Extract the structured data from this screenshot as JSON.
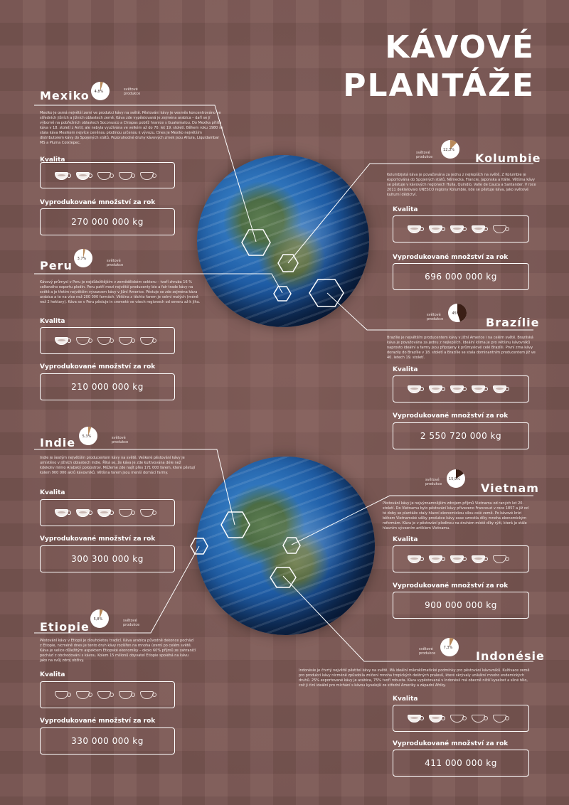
{
  "title_lines": [
    "KÁVOVÉ",
    "PLANTÁŽE"
  ],
  "labels": {
    "quality": "Kvalita",
    "production": "Vyprodukované množství za rok",
    "share": "světové produkce"
  },
  "colors": {
    "background": "#7a5652",
    "text": "#ffffff",
    "pie_fill": "#ffffff",
    "pie_share_light": "#b8895a",
    "pie_share_dark": "#3b1f16"
  },
  "countries": [
    {
      "name": "Mexiko",
      "share_percent": 4.8,
      "share_label": "4,8%",
      "pie_color": "#b8895a",
      "description": "Mexiko je osmá největší zemí ve produkci kávy na světě. Pěstování kávy je vesměs koncentrováno ve středních jižních a jižních oblastech země. Káva zde vypěstovaná je zejména arabica – daří se jí výborně na pobřežních oblastech Soconusco a Chiapas poblíž hranice s Guatemalou. Do Mexika přišla káva v 18. století z Antil, ale nebyla využívána ve velkém až do 70. let 19. století. Během roku 1980 se stala káva Mexikem nejvíce ceněnou plodinou určenou k vývozu. Dnes je Mexiko největším distributorem kávy do Spojených států. Pozoruhodné druhy kávových zrnek jsou Altura, Liquidambar MS a Pluma Coixtepec.",
      "quality": 2,
      "production": "270 000 000 kg"
    },
    {
      "name": "Kolumbie",
      "share_percent": 12.3,
      "share_label": "12,3%",
      "pie_color": "#b8895a",
      "description": "Kolumbijská káva je považována za jednu z nejlepších na světě. Z Kolumbie je exportována do Spojených států, Německa, Francie, Japonska a Itálie. Většina kávy se pěstuje v kávových regionech Huila, Quindío, Valle de Cauca a Santander. V roce 2011 deklarovalo UNESCO regiony Kolumbie, kde se pěstuje káva, jako světové kulturní dědictví.",
      "quality": 4,
      "production": "696 000 000 kg"
    },
    {
      "name": "Peru",
      "share_percent": 3.7,
      "share_label": "3,7%",
      "pie_color": "#b8895a",
      "description": "Kávový průmysl v Peru je nejdůležitějším v zemědělském sektoru – tvoří zhruba 16 % celkového exportu plodin. Peru patří mezi největší producenty bio a fair trade kávy na světě a je třetím největším vývozcem kávy v Jižní Americe. Pěstuje se zde zejména káva arabica a to na více než 200 000 farmách. Většina z těchto farem je velmi malých (méně než 2 hektary). Káva se v Peru pěstuje in cremeté ve všech regionech od severu až k jihu.",
      "quality": 1,
      "production": "210 000 000 kg"
    },
    {
      "name": "Brazílie",
      "share_percent": 45,
      "share_label": "45%",
      "pie_color": "#3b1f16",
      "description": "Brazílie je největším producentem kávy v Jižní Americe i na celém světě. Brazilská káva je považována za jednu z nejlepších. Ideální klima je pro většinu kávovníků naprosto ideální a farmy jsou připojeny k průmyslové celé Brazílii. První zrna kávy dorazily do Brazílie v 18. století a Brazílie se stala dominantním producentem již ve 40. letech 19. století.",
      "quality": 5,
      "production": "2 550 720 000 kg"
    },
    {
      "name": "Indie",
      "share_percent": 5.3,
      "share_label": "5,3%",
      "pie_color": "#b8895a",
      "description": "Indie je šestým největším producentem kávy na světě. Veškeré pěstování kávy je umístěno v jižních oblastech Indie. Říká se, že káva je zde kultivována déle než kdekoliv mimo Arabský poloostrov. Můžeme zde najít přes 171 000 farem, které pěstují kolem 900 000 akrů kávovníků. Většina farem jsou menší domácí farmy.",
      "quality": 3,
      "production": "300 300 000 kg"
    },
    {
      "name": "Vietnam",
      "share_percent": 15.9,
      "share_label": "15,9%",
      "pie_color": "#3b1f16",
      "description": "Pěstování kávy je nejvýznamnějším zdrojem příjmů Vietnamu od raných let 20. století. Do Vietnamu bylo pěstování kávy přivezeno Francouzi v roce 1857 a již od té doby se plantáže staly hlavní ekonomickou silou celé země. Po kávové krizi během Vietnamské války produkce kávy zase vzrostla díky mnoha ekonomickým reformám. Káva je v pěstování plodinou na druhém místě díky rýži, která je stále hlavním vývozním artiklem Vietnamu.",
      "quality": 4,
      "production": "900 000 000 kg"
    },
    {
      "name": "Etiopie",
      "share_percent": 5.8,
      "share_label": "5,8%",
      "pie_color": "#b8895a",
      "description": "Pěstování kávy v Etiopii je dlouholetou tradicí. Káva arabica původně dekonce pochází z Etiopie, nicméně dnes je tento druh kávy rozšířen na mnoha území po celém světě. Káva je velice důležitým aspektem Etiopské ekonomiky – okolo 60% příjmů ze zahraničí pochází z obchodování s kávou. Kolem 15 milionů obyvatel Etiopie spoléhá na kávu jako na svůj zdroj obživy.",
      "quality": 0,
      "production": "330 000 000 kg"
    },
    {
      "name": "Indonésie",
      "share_percent": 7.3,
      "share_label": "7,3%",
      "pie_color": "#b8895a",
      "description": "Indonésie je čtvrtý největší pěstitel kávy na světě. Má ideální mikroklimatické podmínky pro pěstování kávovníků. Kultivace země pro produkci kávy nicméně způsobila zničení mnoha tropických deštných pralesů, které skrývaly unikátní mnoho endemických druhů. 25% exportované kávy je arabica, 75% tvoří robusta. Káva vypěstovaná v Indonésii má obecně nižší kyselost a silné tělo, což ji činí ideální pro míchání s kávou kyselejší ze střední Ameriky a západní Afriky.",
      "quality": 2,
      "production": "411 000 000 kg"
    }
  ]
}
